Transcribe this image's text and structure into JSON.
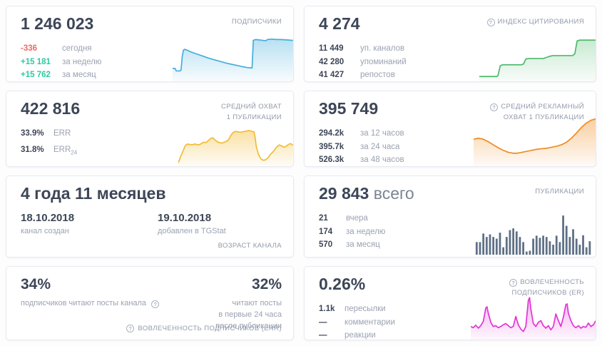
{
  "colors": {
    "negative": "#ee6a65",
    "positive": "#2dc9a4",
    "subscribers_line": "#45aedd",
    "citation_line": "#4eb96c",
    "reach_line": "#f2bc35",
    "ad_reach_line": "#ef8c20",
    "publications_bars": "#5e7086",
    "er_line": "#e234d4",
    "heading": "#3d4657",
    "muted_label": "#9aa2b1"
  },
  "cards": {
    "subscribers": {
      "title": "ПОДПИСЧИКИ",
      "value": "1 246 023",
      "stats": [
        {
          "value": "-336",
          "label": "сегодня"
        },
        {
          "value": "+15 181",
          "label": "за неделю"
        },
        {
          "value": "+15 762",
          "label": "за месяц"
        }
      ],
      "chart": {
        "type": "area",
        "color": "#45aedd",
        "fill_top": 0.38,
        "points": [
          [
            0,
            0.27
          ],
          [
            2,
            0.27
          ],
          [
            3,
            0.21
          ],
          [
            6,
            0.21
          ],
          [
            7,
            0.23
          ],
          [
            8,
            0.55
          ],
          [
            9,
            0.7
          ],
          [
            10,
            0.72
          ],
          [
            12,
            0.7
          ],
          [
            15,
            0.66
          ],
          [
            20,
            0.61
          ],
          [
            25,
            0.56
          ],
          [
            30,
            0.51
          ],
          [
            35,
            0.47
          ],
          [
            40,
            0.43
          ],
          [
            45,
            0.39
          ],
          [
            50,
            0.36
          ],
          [
            55,
            0.33
          ],
          [
            58,
            0.31
          ],
          [
            62,
            0.29
          ],
          [
            65,
            0.28
          ],
          [
            66,
            0.28
          ],
          [
            67,
            0.93
          ],
          [
            69,
            0.95
          ],
          [
            72,
            0.94
          ],
          [
            75,
            0.93
          ],
          [
            77,
            0.92
          ],
          [
            79,
            0.95
          ],
          [
            82,
            0.96
          ],
          [
            86,
            0.95
          ],
          [
            90,
            0.95
          ],
          [
            95,
            0.94
          ],
          [
            100,
            0.93
          ]
        ]
      }
    },
    "citation": {
      "title": "ИНДЕКС ЦИТИРОВАНИЯ",
      "value": "4 274",
      "stats": [
        {
          "value": "11 449",
          "label": "уп. каналов"
        },
        {
          "value": "42 280",
          "label": "упоминаний"
        },
        {
          "value": "41 427",
          "label": "репостов"
        }
      ],
      "chart": {
        "type": "area",
        "color": "#4eb96c",
        "fill_top": 0.3,
        "points": [
          [
            0,
            0.08
          ],
          [
            15,
            0.08
          ],
          [
            16,
            0.1
          ],
          [
            18,
            0.34
          ],
          [
            20,
            0.36
          ],
          [
            36,
            0.36
          ],
          [
            38,
            0.38
          ],
          [
            40,
            0.5
          ],
          [
            42,
            0.51
          ],
          [
            55,
            0.51
          ],
          [
            57,
            0.53
          ],
          [
            60,
            0.56
          ],
          [
            63,
            0.58
          ],
          [
            80,
            0.58
          ],
          [
            82,
            0.62
          ],
          [
            84,
            0.93
          ],
          [
            86,
            0.95
          ],
          [
            100,
            0.95
          ]
        ]
      }
    },
    "avg_reach": {
      "title": "СРЕДНИЙ ОХВАТ\n1 ПУБЛИКАЦИИ",
      "value": "422 816",
      "stats": [
        {
          "value": "33.9%",
          "label": "ERR",
          "sub": ""
        },
        {
          "value": "31.8%",
          "label": "ERR",
          "sub": "24"
        }
      ],
      "chart": {
        "type": "area",
        "color": "#f2bc35",
        "fill_top": 0.45,
        "points": [
          [
            0,
            0.04
          ],
          [
            2,
            0.18
          ],
          [
            4,
            0.3
          ],
          [
            6,
            0.42
          ],
          [
            8,
            0.46
          ],
          [
            10,
            0.45
          ],
          [
            12,
            0.44
          ],
          [
            14,
            0.46
          ],
          [
            16,
            0.45
          ],
          [
            18,
            0.44
          ],
          [
            20,
            0.47
          ],
          [
            22,
            0.5
          ],
          [
            24,
            0.49
          ],
          [
            26,
            0.53
          ],
          [
            28,
            0.58
          ],
          [
            30,
            0.6
          ],
          [
            32,
            0.55
          ],
          [
            34,
            0.51
          ],
          [
            36,
            0.49
          ],
          [
            38,
            0.48
          ],
          [
            40,
            0.5
          ],
          [
            42,
            0.52
          ],
          [
            44,
            0.56
          ],
          [
            46,
            0.66
          ],
          [
            48,
            0.72
          ],
          [
            50,
            0.74
          ],
          [
            52,
            0.73
          ],
          [
            54,
            0.72
          ],
          [
            56,
            0.73
          ],
          [
            58,
            0.74
          ],
          [
            60,
            0.75
          ],
          [
            62,
            0.76
          ],
          [
            64,
            0.74
          ],
          [
            66,
            0.73
          ],
          [
            67,
            0.6
          ],
          [
            68,
            0.4
          ],
          [
            70,
            0.22
          ],
          [
            72,
            0.13
          ],
          [
            74,
            0.1
          ],
          [
            76,
            0.11
          ],
          [
            78,
            0.15
          ],
          [
            80,
            0.22
          ],
          [
            83,
            0.3
          ],
          [
            86,
            0.4
          ],
          [
            88,
            0.44
          ],
          [
            90,
            0.42
          ],
          [
            92,
            0.39
          ],
          [
            94,
            0.41
          ],
          [
            96,
            0.45
          ],
          [
            98,
            0.47
          ],
          [
            100,
            0.43
          ]
        ]
      }
    },
    "avg_ad_reach": {
      "title": "СРЕДНИЙ РЕКЛАМНЫЙ\nОХВАТ 1 ПУБЛИКАЦИИ",
      "value": "395 749",
      "stats": [
        {
          "value": "294.2k",
          "label": "за 12 часов"
        },
        {
          "value": "395.7k",
          "label": "за 24 часа"
        },
        {
          "value": "526.3k",
          "label": "за 48 часов"
        }
      ],
      "chart": {
        "type": "area",
        "color": "#ef8c20",
        "fill_top": 0.42,
        "points": [
          [
            0,
            0.5
          ],
          [
            4,
            0.52
          ],
          [
            8,
            0.5
          ],
          [
            12,
            0.45
          ],
          [
            16,
            0.39
          ],
          [
            20,
            0.33
          ],
          [
            24,
            0.28
          ],
          [
            28,
            0.24
          ],
          [
            32,
            0.22
          ],
          [
            36,
            0.22
          ],
          [
            40,
            0.24
          ],
          [
            44,
            0.26
          ],
          [
            48,
            0.28
          ],
          [
            52,
            0.3
          ],
          [
            56,
            0.31
          ],
          [
            60,
            0.32
          ],
          [
            64,
            0.34
          ],
          [
            68,
            0.36
          ],
          [
            72,
            0.39
          ],
          [
            76,
            0.44
          ],
          [
            80,
            0.52
          ],
          [
            84,
            0.62
          ],
          [
            88,
            0.73
          ],
          [
            92,
            0.82
          ],
          [
            96,
            0.88
          ],
          [
            100,
            0.91
          ]
        ]
      }
    },
    "channel_age": {
      "value": "4 года 11 месяцев",
      "dates": [
        {
          "value": "18.10.2018",
          "label": "канал создан"
        },
        {
          "value": "19.10.2018",
          "label": "добавлен в TGStat"
        }
      ],
      "footer": "ВОЗРАСТ КАНАЛА"
    },
    "publications": {
      "title": "ПУБЛИКАЦИИ",
      "value": "29 843",
      "value_suffix": "всего",
      "stats": [
        {
          "value": "21",
          "label": "вчера"
        },
        {
          "value": "174",
          "label": "за неделю"
        },
        {
          "value": "570",
          "label": "за месяц"
        }
      ],
      "chart": {
        "type": "bars",
        "color": "#5e7086",
        "values": [
          0.3,
          0.3,
          0.5,
          0.42,
          0.48,
          0.42,
          0.38,
          0.52,
          0.18,
          0.42,
          0.58,
          0.62,
          0.55,
          0.42,
          0.3,
          0.08,
          0.1,
          0.38,
          0.45,
          0.4,
          0.45,
          0.42,
          0.32,
          0.24,
          0.45,
          0.3,
          0.92,
          0.68,
          0.42,
          0.6,
          0.38,
          0.24,
          0.46,
          0.18,
          0.32
        ]
      }
    },
    "err": {
      "left_value": "34%",
      "left_label": "подписчиков читают посты канала",
      "right_value": "32%",
      "right_label": "читают посты\nв первые 24 часа\nпосле публикации",
      "footer": "ВОВЛЕЧЕННОСТЬ ПОДПИСЧИКОВ (ERR)"
    },
    "er": {
      "title": "ВОВЛЕЧЕННОСТЬ\nПОДПИСЧИКОВ (ER)",
      "value": "0.26%",
      "stats": [
        {
          "value": "1.1k",
          "label": "пересылки"
        },
        {
          "value": "—",
          "label": "комментарии"
        },
        {
          "value": "—",
          "label": "реакции"
        }
      ],
      "chart": {
        "type": "area",
        "color": "#e234d4",
        "fill_top": 0.38,
        "points": [
          [
            0,
            0.28
          ],
          [
            2,
            0.25
          ],
          [
            4,
            0.31
          ],
          [
            6,
            0.24
          ],
          [
            8,
            0.3
          ],
          [
            10,
            0.4
          ],
          [
            12,
            0.72
          ],
          [
            13,
            0.75
          ],
          [
            14,
            0.6
          ],
          [
            16,
            0.38
          ],
          [
            18,
            0.28
          ],
          [
            20,
            0.3
          ],
          [
            22,
            0.25
          ],
          [
            24,
            0.28
          ],
          [
            26,
            0.32
          ],
          [
            28,
            0.35
          ],
          [
            30,
            0.3
          ],
          [
            32,
            0.25
          ],
          [
            34,
            0.28
          ],
          [
            36,
            0.52
          ],
          [
            38,
            0.32
          ],
          [
            40,
            0.22
          ],
          [
            42,
            0.16
          ],
          [
            44,
            0.28
          ],
          [
            46,
            0.9
          ],
          [
            47,
            0.97
          ],
          [
            48,
            0.7
          ],
          [
            50,
            0.35
          ],
          [
            52,
            0.28
          ],
          [
            54,
            0.38
          ],
          [
            56,
            0.42
          ],
          [
            58,
            0.3
          ],
          [
            60,
            0.24
          ],
          [
            62,
            0.3
          ],
          [
            64,
            0.2
          ],
          [
            66,
            0.28
          ],
          [
            68,
            0.58
          ],
          [
            70,
            0.42
          ],
          [
            72,
            0.28
          ],
          [
            74,
            0.5
          ],
          [
            76,
            0.8
          ],
          [
            77,
            0.82
          ],
          [
            78,
            0.6
          ],
          [
            80,
            0.42
          ],
          [
            82,
            0.3
          ],
          [
            84,
            0.25
          ],
          [
            86,
            0.3
          ],
          [
            88,
            0.24
          ],
          [
            90,
            0.28
          ],
          [
            92,
            0.26
          ],
          [
            94,
            0.36
          ],
          [
            96,
            0.28
          ],
          [
            98,
            0.32
          ],
          [
            100,
            0.42
          ]
        ]
      }
    }
  },
  "icons": {
    "info": "?"
  }
}
